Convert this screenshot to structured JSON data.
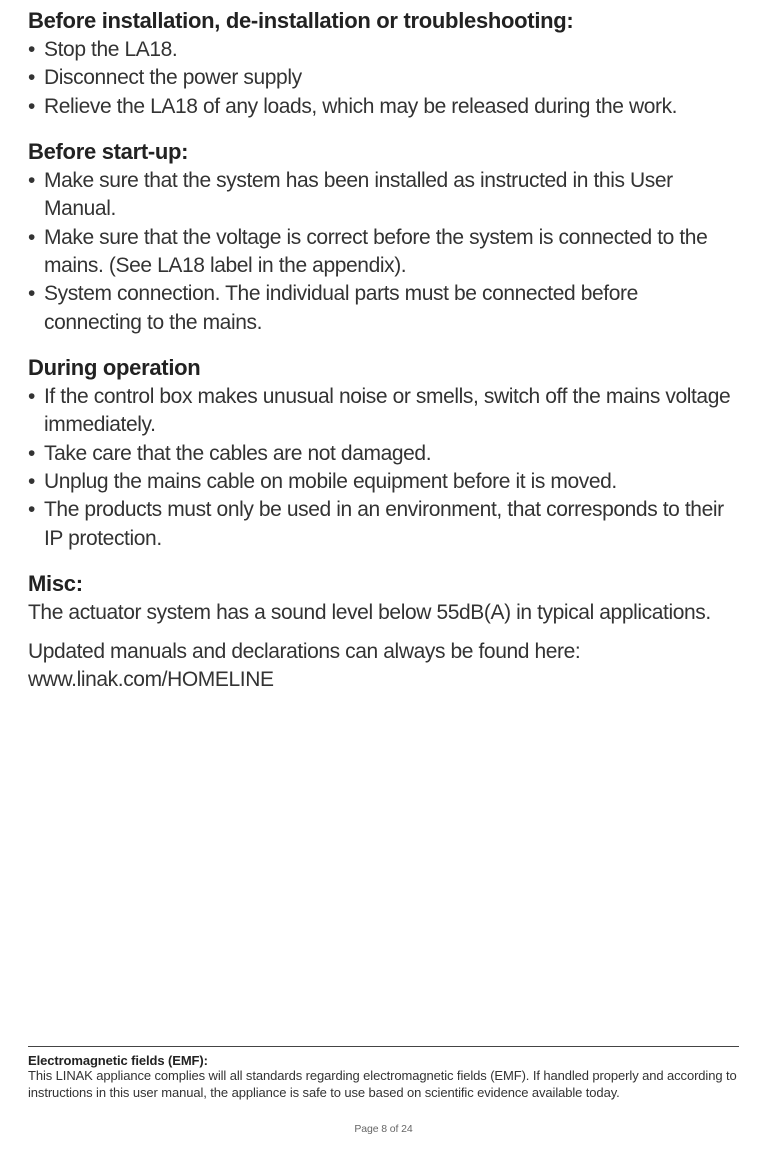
{
  "sections": {
    "s1": {
      "heading": "Before installation, de-installation or troubleshooting:",
      "items": [
        "Stop the LA18.",
        "Disconnect the power supply",
        "Relieve the LA18 of any loads, which may be released during the work."
      ]
    },
    "s2": {
      "heading": "Before start-up:",
      "items": [
        "Make sure that the system has been installed as instructed in this User Manual.",
        "Make sure that the voltage is correct before the system is connected to the mains. (See LA18 label in the appendix).",
        "System connection. The individual parts must be connected before connecting to the mains."
      ]
    },
    "s3": {
      "heading": "During operation",
      "items": [
        "If the control box makes unusual noise or smells, switch off the mains voltage immediately.",
        "Take care that the cables are not damaged.",
        "Unplug the mains cable on mobile equipment before it is moved.",
        "The products must only be used in an environment, that corresponds to their IP protection."
      ]
    },
    "s4": {
      "heading": "Misc:",
      "p1": "The actuator system has a sound level below 55dB(A) in typical applications.",
      "p2": "Updated manuals and declarations can always be found here: www.linak.com/HOMELINE"
    }
  },
  "footer": {
    "heading": "Electromagnetic fields (EMF):",
    "body": "This LINAK appliance complies will all standards regarding electromagnetic fields (EMF). If handled properly and according to instructions in this user manual, the appliance is safe to use based on scientific evidence available today."
  },
  "pageNumber": "Page 8 of 24"
}
